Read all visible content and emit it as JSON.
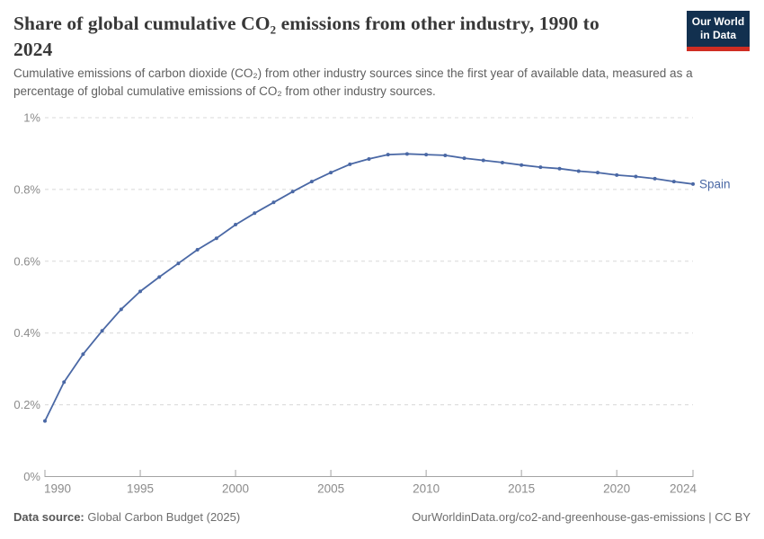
{
  "header": {
    "title": "Share of global cumulative CO₂ emissions from other industry, 1990 to 2024",
    "subtitle": "Cumulative emissions of carbon dioxide (CO₂) from other industry sources since the first year of available data, measured as a percentage of global cumulative emissions of CO₂ from other industry sources.",
    "logo": {
      "line1": "Our World",
      "line2": "in Data",
      "bg_color": "#12304f",
      "accent_color": "#cf2d23"
    }
  },
  "chart_data": {
    "type": "line",
    "title": "Share of global cumulative CO₂ emissions from other industry, 1990 to 2024",
    "xlabel": "",
    "ylabel": "",
    "xlim": [
      1990,
      2024
    ],
    "ylim": [
      0,
      1
    ],
    "grid": "horizontal-dashed",
    "legend_position": "line-end-label",
    "x": [
      1990,
      1991,
      1992,
      1993,
      1994,
      1995,
      1996,
      1997,
      1998,
      1999,
      2000,
      2001,
      2002,
      2003,
      2004,
      2005,
      2006,
      2007,
      2008,
      2009,
      2010,
      2011,
      2012,
      2013,
      2014,
      2015,
      2016,
      2017,
      2018,
      2019,
      2020,
      2021,
      2022,
      2023,
      2024
    ],
    "series": [
      {
        "name": "Spain",
        "color": "#4a68a5",
        "unit": "%",
        "values": [
          0.155,
          0.263,
          0.341,
          0.406,
          0.466,
          0.516,
          0.556,
          0.594,
          0.632,
          0.664,
          0.702,
          0.734,
          0.764,
          0.794,
          0.822,
          0.847,
          0.87,
          0.885,
          0.897,
          0.899,
          0.897,
          0.895,
          0.887,
          0.881,
          0.875,
          0.868,
          0.862,
          0.858,
          0.851,
          0.847,
          0.84,
          0.836,
          0.83,
          0.822,
          0.815
        ]
      }
    ],
    "x_tick_labels": [
      "1990",
      "1995",
      "2000",
      "2005",
      "2010",
      "2015",
      "2020",
      "2024"
    ],
    "x_tick_values": [
      1990,
      1995,
      2000,
      2005,
      2010,
      2015,
      2020,
      2024
    ],
    "y_ticks": [
      {
        "value": 0,
        "label": "0%"
      },
      {
        "value": 0.2,
        "label": "0.2%"
      },
      {
        "value": 0.4,
        "label": "0.4%"
      },
      {
        "value": 0.6,
        "label": "0.6%"
      },
      {
        "value": 0.8,
        "label": "0.8%"
      },
      {
        "value": 1,
        "label": "1%"
      }
    ]
  },
  "footer": {
    "datasource_label": "Data source:",
    "datasource_value": " Global Carbon Budget (2025)",
    "url_text": "OurWorldinData.org/co2-and-greenhouse-gas-emissions | CC BY"
  }
}
